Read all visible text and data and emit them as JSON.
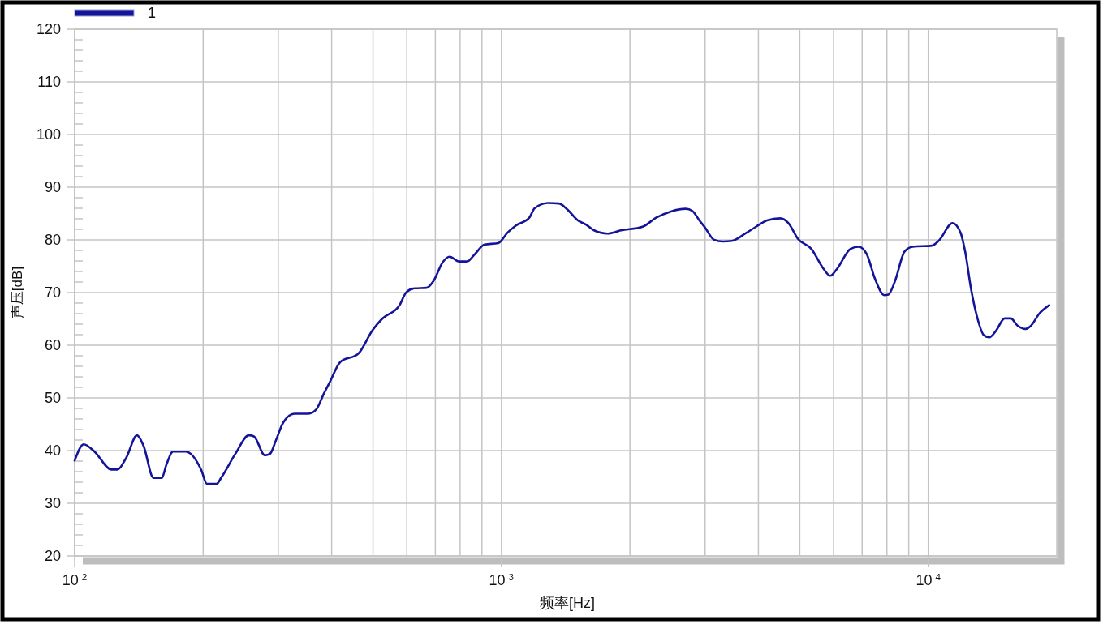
{
  "chart_data": {
    "type": "line",
    "xlabel": "频率[Hz]",
    "ylabel": "声压[dB]",
    "log": "x",
    "grid": true,
    "legend": "top left",
    "line_style": "solid",
    "xlim": [
      100,
      20000
    ],
    "ylim": [
      20,
      120
    ],
    "xticks": [
      {
        "value": 100,
        "label": "10$^{2}$"
      },
      {
        "value": 200,
        "label": null
      },
      {
        "value": 300,
        "label": null
      },
      {
        "value": 400,
        "label": null
      },
      {
        "value": 500,
        "label": null
      },
      {
        "value": 600,
        "label": null
      },
      {
        "value": 700,
        "label": null
      },
      {
        "value": 800,
        "label": null
      },
      {
        "value": 900,
        "label": null
      },
      {
        "value": 1000,
        "label": "10$^{3}$"
      },
      {
        "value": 2000,
        "label": null
      },
      {
        "value": 3000,
        "label": null
      },
      {
        "value": 4000,
        "label": null
      },
      {
        "value": 5000,
        "label": null
      },
      {
        "value": 6000,
        "label": null
      },
      {
        "value": 7000,
        "label": null
      },
      {
        "value": 8000,
        "label": null
      },
      {
        "value": 9000,
        "label": null
      },
      {
        "value": 10000,
        "label": "10$^{4}$"
      }
    ],
    "yticks": [
      20,
      {
        "value": 22,
        "label": null
      },
      {
        "value": 24,
        "label": null
      },
      {
        "value": 26,
        "label": null
      },
      {
        "value": 28,
        "label": null
      },
      30,
      {
        "value": 32,
        "label": null
      },
      {
        "value": 34,
        "label": null
      },
      {
        "value": 36,
        "label": null
      },
      {
        "value": 38,
        "label": null
      },
      40,
      {
        "value": 42,
        "label": null
      },
      {
        "value": 44,
        "label": null
      },
      {
        "value": 46,
        "label": null
      },
      {
        "value": 48,
        "label": null
      },
      50,
      {
        "value": 52,
        "label": null
      },
      {
        "value": 54,
        "label": null
      },
      {
        "value": 56,
        "label": null
      },
      {
        "value": 58,
        "label": null
      },
      60,
      {
        "value": 62,
        "label": null
      },
      {
        "value": 64,
        "label": null
      },
      {
        "value": 66,
        "label": null
      },
      {
        "value": 68,
        "label": null
      },
      70,
      {
        "value": 72,
        "label": null
      },
      {
        "value": 74,
        "label": null
      },
      {
        "value": 76,
        "label": null
      },
      {
        "value": 78,
        "label": null
      },
      80,
      {
        "value": 82,
        "label": null
      },
      {
        "value": 84,
        "label": null
      },
      {
        "value": 86,
        "label": null
      },
      {
        "value": 88,
        "label": null
      },
      90,
      {
        "value": 92,
        "label": null
      },
      {
        "value": 94,
        "label": null
      },
      {
        "value": 96,
        "label": null
      },
      {
        "value": 98,
        "label": null
      },
      100,
      {
        "value": 102,
        "label": null
      },
      {
        "value": 104,
        "label": null
      },
      {
        "value": 106,
        "label": null
      },
      {
        "value": 108,
        "label": null
      },
      110,
      {
        "value": 112,
        "label": null
      },
      {
        "value": 114,
        "label": null
      },
      {
        "value": 116,
        "label": null
      },
      {
        "value": 118,
        "label": null
      },
      120
    ],
    "x": [
      100,
      105,
      111,
      122,
      126,
      132,
      140,
      145,
      153,
      160,
      164,
      170,
      182,
      198,
      204,
      215,
      221,
      238,
      256,
      263,
      279,
      287,
      296,
      308,
      327,
      352,
      368,
      384,
      396,
      419,
      462,
      499,
      525,
      577,
      599,
      626,
      668,
      693,
      729,
      756,
      796,
      831,
      862,
      913,
      983,
      1034,
      1080,
      1162,
      1196,
      1287,
      1364,
      1425,
      1510,
      1578,
      1648,
      1773,
      1906,
      2142,
      2303,
      2496,
      2704,
      2800,
      2909,
      2995,
      3150,
      3300,
      3464,
      3726,
      3949,
      4188,
      4500,
      4700,
      4950,
      5322,
      5684,
      5894,
      6112,
      6574,
      6868,
      7176,
      7496,
      7889,
      8063,
      8359,
      8800,
      9192,
      10200,
      10600,
      11400,
      11900,
      12200,
      12600,
      13000,
      13500,
      13900,
      14400,
      15100,
      15600,
      16200,
      16900,
      17400,
      18200,
      19200
    ],
    "series": [
      {
        "name": "1",
        "color": "#14149a",
        "values": [
          38.1,
          41.2,
          39.9,
          36.4,
          36.4,
          38.6,
          42.9,
          40.9,
          34.8,
          34.8,
          37.3,
          39.8,
          39.8,
          36.3,
          33.7,
          33.7,
          35.0,
          39.4,
          42.9,
          42.7,
          39.1,
          39.4,
          41.9,
          45.3,
          47.0,
          47.0,
          47.8,
          50.9,
          53.0,
          56.8,
          58.4,
          62.9,
          65.0,
          67.6,
          70.1,
          70.8,
          70.9,
          72.2,
          75.8,
          76.8,
          75.9,
          75.9,
          77.1,
          79.1,
          79.4,
          81.4,
          82.7,
          84.2,
          86.0,
          87.0,
          86.9,
          85.8,
          83.7,
          82.9,
          81.8,
          81.2,
          81.8,
          82.5,
          84.2,
          85.4,
          85.9,
          85.5,
          83.7,
          82.4,
          80.0,
          79.7,
          79.8,
          81.2,
          82.5,
          83.7,
          84.1,
          83.2,
          80.2,
          78.3,
          74.5,
          73.2,
          74.5,
          78.3,
          78.7,
          77.3,
          72.7,
          69.5,
          69.6,
          72.2,
          77.8,
          78.7,
          78.9,
          79.9,
          83.2,
          81.4,
          77.8,
          70.6,
          65.5,
          61.9,
          61.5,
          62.7,
          65.1,
          65.1,
          63.7,
          63.1,
          63.7,
          66.0,
          67.6
        ]
      }
    ]
  }
}
